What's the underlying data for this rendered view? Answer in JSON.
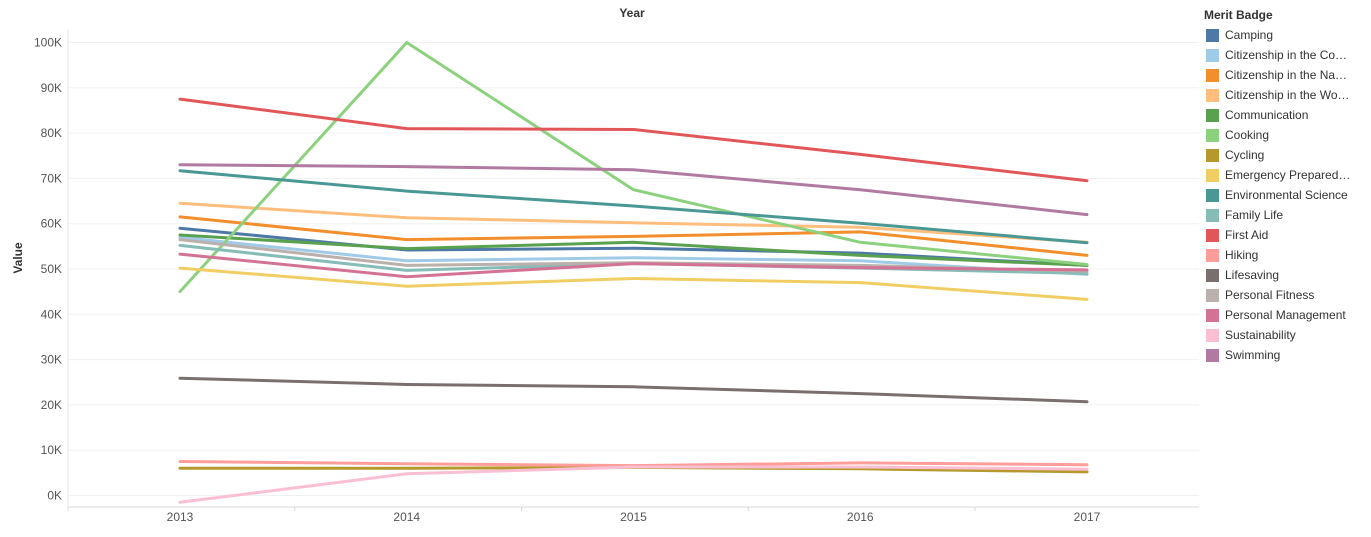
{
  "chart_data": {
    "type": "line",
    "title": "Year",
    "xlabel": "",
    "ylabel": "Value",
    "categories": [
      "2013",
      "2014",
      "2015",
      "2016",
      "2017"
    ],
    "ylim": [
      0,
      100000
    ],
    "yticks": [
      0,
      10000,
      20000,
      30000,
      40000,
      50000,
      60000,
      70000,
      80000,
      90000,
      100000
    ],
    "ytick_labels": [
      "0K",
      "10K",
      "20K",
      "30K",
      "40K",
      "50K",
      "60K",
      "70K",
      "80K",
      "90K",
      "100K"
    ],
    "grid": true,
    "legend_title": "Merit Badge",
    "legend_position": "right",
    "series": [
      {
        "name": "Camping",
        "display": "Camping",
        "color": "#4e79a7",
        "values": [
          59000,
          54200,
          54600,
          53500,
          50800
        ]
      },
      {
        "name": "Citizenship in the Community",
        "display": "Citizenship in the Co…",
        "color": "#a0cbe8",
        "values": [
          57000,
          51800,
          52500,
          51800,
          48800
        ]
      },
      {
        "name": "Citizenship in the Nation",
        "display": "Citizenship in the Na…",
        "color": "#f28e2b",
        "values": [
          61500,
          56500,
          57200,
          58200,
          53000
        ]
      },
      {
        "name": "Citizenship in the World",
        "display": "Citizenship in the Wo…",
        "color": "#ffbe7d",
        "values": [
          64500,
          61300,
          60200,
          59200,
          55900
        ]
      },
      {
        "name": "Communication",
        "display": "Communication",
        "color": "#59a14f",
        "values": [
          57500,
          54500,
          55900,
          53000,
          50800
        ]
      },
      {
        "name": "Cooking",
        "display": "Cooking",
        "color": "#8cd17d",
        "values": [
          45000,
          100000,
          67500,
          55900,
          51000
        ]
      },
      {
        "name": "Cycling",
        "display": "Cycling",
        "color": "#b6992d",
        "values": [
          6000,
          6000,
          6200,
          5900,
          5200
        ]
      },
      {
        "name": "Emergency Preparedness",
        "display": "Emergency Prepared…",
        "color": "#f1ce63",
        "values": [
          50200,
          46200,
          47900,
          47000,
          43300
        ]
      },
      {
        "name": "Environmental Science",
        "display": "Environmental Science",
        "color": "#499894",
        "values": [
          71700,
          67200,
          63900,
          60100,
          55800
        ]
      },
      {
        "name": "Family Life",
        "display": "Family Life",
        "color": "#86bcb6",
        "values": [
          55200,
          49700,
          51200,
          50200,
          49000
        ]
      },
      {
        "name": "First Aid",
        "display": "First Aid",
        "color": "#e15759",
        "values": [
          87500,
          81000,
          80800,
          75300,
          69500
        ]
      },
      {
        "name": "Hiking",
        "display": "Hiking",
        "color": "#ff9d9a",
        "values": [
          7500,
          7000,
          6600,
          7200,
          6800
        ]
      },
      {
        "name": "Lifesaving",
        "display": "Lifesaving",
        "color": "#79706e",
        "values": [
          25900,
          24500,
          24000,
          22500,
          20700
        ]
      },
      {
        "name": "Personal Fitness",
        "display": "Personal Fitness",
        "color": "#bab0ac",
        "values": [
          56500,
          50800,
          51400,
          50800,
          49500
        ]
      },
      {
        "name": "Personal Management",
        "display": "Personal Management",
        "color": "#d37295",
        "values": [
          53300,
          48300,
          51200,
          50300,
          49800
        ]
      },
      {
        "name": "Sustainability",
        "display": "Sustainability",
        "color": "#fabfd2",
        "values": [
          -1500,
          4800,
          6300,
          6300,
          5800
        ]
      },
      {
        "name": "Swimming",
        "display": "Swimming",
        "color": "#b07aa1",
        "values": [
          73000,
          72600,
          71900,
          67500,
          62000
        ]
      }
    ]
  }
}
